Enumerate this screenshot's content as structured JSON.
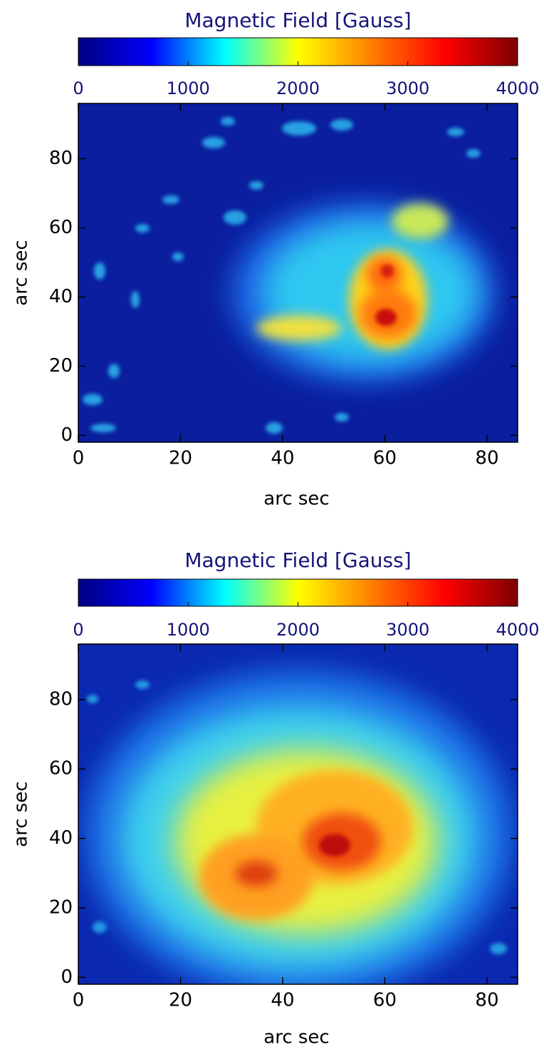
{
  "chart_data": [
    {
      "type": "heatmap",
      "title": "Magnetic Field [Gauss]",
      "colorbar": {
        "lim": [
          0,
          4000
        ],
        "ticks": [
          0,
          1000,
          2000,
          3000,
          4000
        ],
        "colors": [
          "#00007f",
          "#0000ff",
          "#00ffff",
          "#ffff00",
          "#ff7f00",
          "#ff0000",
          "#7f0000"
        ]
      },
      "xlabel": "arc sec",
      "ylabel": "arc sec",
      "xlim": [
        0,
        86
      ],
      "xticks": [
        0,
        20,
        40,
        60,
        80
      ],
      "ylim": [
        -2,
        96
      ],
      "yticks": [
        0,
        20,
        40,
        60,
        80
      ]
    },
    {
      "type": "heatmap",
      "title": "Magnetic Field [Gauss]",
      "colorbar": {
        "lim": [
          0,
          4000
        ],
        "ticks": [
          0,
          1000,
          2000,
          3000,
          4000
        ],
        "colors": [
          "#00007f",
          "#0000ff",
          "#00ffff",
          "#ffff00",
          "#ff7f00",
          "#ff0000",
          "#7f0000"
        ]
      },
      "xlabel": "arc sec",
      "ylabel": "arc sec",
      "xlim": [
        0,
        86
      ],
      "xticks": [
        0,
        20,
        40,
        60,
        80
      ],
      "ylim": [
        -2,
        96
      ],
      "yticks": [
        0,
        20,
        40,
        60,
        80
      ]
    }
  ]
}
